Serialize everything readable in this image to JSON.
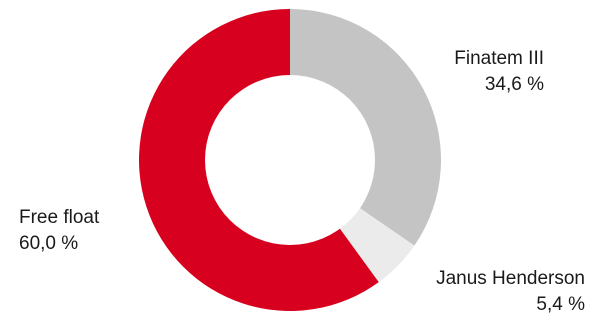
{
  "chart_data": {
    "type": "pie",
    "variant": "donut",
    "title": "",
    "legend": "none",
    "slices": [
      {
        "label": "Finatem III",
        "value": 34.6,
        "value_text": "34,6 %",
        "color": "#c3c4c3"
      },
      {
        "label": "Janus Henderson",
        "value": 5.4,
        "value_text": "5,4 %",
        "color": "#ebebeb"
      },
      {
        "label": "Free float",
        "value": 60.0,
        "value_text": "60,0 %",
        "color": "#d7001e"
      }
    ]
  }
}
